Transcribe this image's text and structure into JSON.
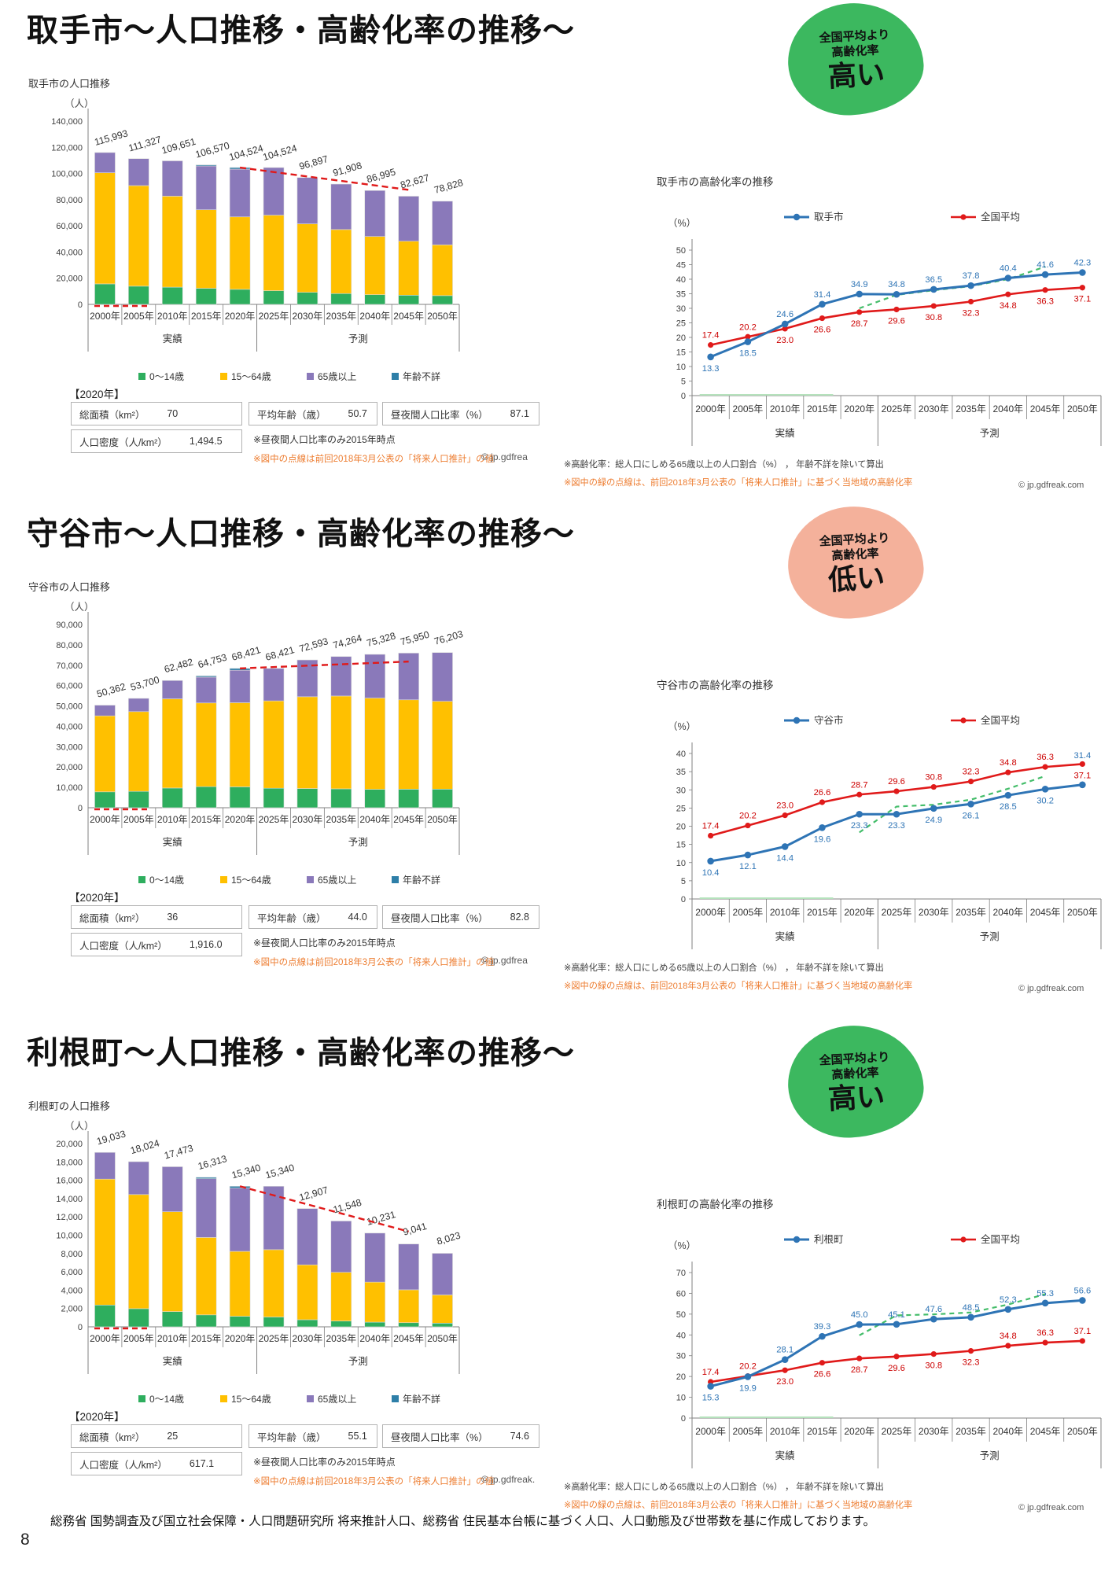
{
  "page": {
    "number": "8",
    "source_note": "総務省 国勢調査及び国立社会保障・人口問題研究所 将来推計人口、総務省 住民基本台帳に基づく人口、人口動態及び世帯数を基に作成しております。"
  },
  "colors": {
    "bar_kids": "#2eae5e",
    "bar_working": "#ffc000",
    "bar_elderly": "#8a79ba",
    "bar_unknown": "#2e7fa8",
    "line_municipal": "#2e74b5",
    "line_national": "#e01a1a",
    "label_national": "#cc0000",
    "prev_projection": "#44bd6a",
    "red_dash": "#e01a1a",
    "orange_note": "#ED7D31",
    "badge_high": "#3cb85f",
    "badge_low": "#f4b19b"
  },
  "categories": [
    "2000年",
    "2005年",
    "2010年",
    "2015年",
    "2020年",
    "2025年",
    "2030年",
    "2035年",
    "2040年",
    "2045年",
    "2050年"
  ],
  "axis_groups": {
    "actual": "実績",
    "forecast": "予測",
    "actual_span": 5
  },
  "bar_legend": [
    "0～14歳",
    "15～64歳",
    "65歳以上",
    "年齢不詳"
  ],
  "chart_data": [
    {
      "type": "bar",
      "title": "取手市の人口推移",
      "unit": "（人）",
      "ylim": [
        0,
        140000
      ],
      "ystep": 20000,
      "totals": [
        115993,
        111327,
        109651,
        106570,
        104524,
        104524,
        96897,
        91908,
        86995,
        82627,
        78828
      ],
      "total_labels": [
        "115,993",
        "111,327",
        "109,651",
        "106,570",
        "104,524",
        "104,524",
        "96,897",
        "91,908",
        "86,995",
        "82,627",
        "78,828"
      ],
      "age_groups": {
        "kids": [
          15659,
          13916,
          13158,
          12256,
          11498,
          10452,
          9205,
          8272,
          7394,
          7023,
          6700
        ],
        "working": [
          84907,
          76815,
          69519,
          60051,
          55347,
          57698,
          52325,
          48895,
          44455,
          41231,
          38784
        ],
        "elderly": [
          15427,
          20596,
          26974,
          33463,
          36479,
          36374,
          35367,
          34741,
          35146,
          34373,
          33344
        ],
        "unknown": [
          0,
          0,
          0,
          800,
          1200,
          0,
          0,
          0,
          0,
          0,
          0
        ]
      },
      "prev_projection_line": {
        "points": [
          [
            4,
            104524
          ],
          [
            9,
            87500
          ]
        ],
        "baseline_dash": true
      }
    },
    {
      "type": "line",
      "title": "取手市の高齢化率の推移",
      "unit": "（%）",
      "ylim": [
        0,
        50
      ],
      "ystep": 5,
      "series": [
        {
          "name": "取手市",
          "values": [
            13.3,
            18.5,
            24.6,
            31.4,
            34.9,
            34.8,
            36.5,
            37.8,
            40.4,
            41.6,
            42.3
          ],
          "labels": [
            "13.3",
            "18.5",
            "24.6",
            "31.4",
            "34.9",
            "34.8",
            "36.5",
            "37.8",
            "40.4",
            "41.6",
            "42.3"
          ],
          "label_sides": [
            "b",
            "b",
            "a",
            "a",
            "a",
            "a",
            "a",
            "a",
            "a",
            "a",
            "a"
          ]
        },
        {
          "name": "全国平均",
          "values": [
            17.4,
            20.2,
            23.0,
            26.6,
            28.7,
            29.6,
            30.8,
            32.3,
            34.8,
            36.3,
            37.1
          ],
          "labels": [
            "17.4",
            "20.2",
            "23.0",
            "26.6",
            "28.7",
            "29.6",
            "30.8",
            "32.3",
            "34.8",
            "36.3",
            "37.1"
          ],
          "label_sides": [
            "a",
            "a",
            "b",
            "b",
            "b",
            "b",
            "b",
            "b",
            "b",
            "b",
            "b"
          ]
        }
      ],
      "prev_projection": {
        "start_index": 4,
        "values": [
          30.0,
          34.6,
          36.2,
          37.6,
          40.0,
          44.3
        ]
      },
      "notes": [
        "※高齢化率：総人口にしめる65歳以上の人口割合（%） ， 年齢不詳を除いて算出",
        "※図中の緑の点線は、前回2018年3月公表の「将来人口推計」に基づく当地域の高齢化率"
      ],
      "copyright": "© jp.gdfreak.com"
    },
    {
      "type": "bar",
      "title": "守谷市の人口推移",
      "unit": "（人）",
      "ylim": [
        0,
        90000
      ],
      "ystep": 10000,
      "totals": [
        50362,
        53700,
        62482,
        64753,
        68421,
        68421,
        72593,
        74264,
        75328,
        75950,
        76203
      ],
      "total_labels": [
        "50,362",
        "53,700",
        "62,482",
        "64,753",
        "68,421",
        "68,421",
        "72,593",
        "74,264",
        "75,328",
        "75,950",
        "76,203"
      ],
      "age_groups": {
        "kids": [
          7806,
          8055,
          9685,
          10360,
          10263,
          9579,
          9437,
          9283,
          9039,
          9114,
          9144
        ],
        "working": [
          37318,
          39147,
          43800,
          41101,
          41316,
          42900,
          45080,
          45598,
          44821,
          43899,
          43131
        ],
        "elderly": [
          5238,
          6498,
          8997,
          12692,
          15942,
          15942,
          18076,
          19383,
          21468,
          22937,
          23928
        ],
        "unknown": [
          0,
          0,
          0,
          600,
          900,
          0,
          0,
          0,
          0,
          0,
          0
        ]
      },
      "prev_projection_line": {
        "points": [
          [
            4,
            68421
          ],
          [
            9,
            71800
          ]
        ],
        "baseline_dash": true
      }
    },
    {
      "type": "line",
      "title": "守谷市の高齢化率の推移",
      "unit": "（%）",
      "ylim": [
        0,
        40
      ],
      "ystep": 5,
      "series": [
        {
          "name": "守谷市",
          "values": [
            10.4,
            12.1,
            14.4,
            19.6,
            23.3,
            23.3,
            24.9,
            26.1,
            28.5,
            30.2,
            31.4
          ],
          "labels": [
            "10.4",
            "12.1",
            "14.4",
            "19.6",
            "23.3",
            "23.3",
            "24.9",
            "26.1",
            "28.5",
            "30.2",
            "31.4"
          ],
          "label_sides": [
            "b",
            "b",
            "b",
            "b",
            "b",
            "b",
            "b",
            "b",
            "b",
            "b",
            "A"
          ]
        },
        {
          "name": "全国平均",
          "values": [
            17.4,
            20.2,
            23.0,
            26.6,
            28.7,
            29.6,
            30.8,
            32.3,
            34.8,
            36.3,
            37.1
          ],
          "labels": [
            "17.4",
            "20.2",
            "23.0",
            "26.6",
            "28.7",
            "29.6",
            "30.8",
            "32.3",
            "34.8",
            "36.3",
            "37.1"
          ],
          "label_sides": [
            "a",
            "a",
            "a",
            "a",
            "a",
            "a",
            "a",
            "a",
            "a",
            "a",
            "b"
          ]
        }
      ],
      "prev_projection": {
        "start_index": 4,
        "values": [
          18.3,
          25.4,
          25.9,
          27.3,
          30.3,
          33.8
        ]
      },
      "notes": [
        "※高齢化率：総人口にしめる65歳以上の人口割合（%） ， 年齢不詳を除いて算出",
        "※図中の緑の点線は、前回2018年3月公表の「将来人口推計」に基づく当地域の高齢化率"
      ],
      "copyright": "© jp.gdfreak.com"
    },
    {
      "type": "bar",
      "title": "利根町の人口推移",
      "unit": "（人）",
      "ylim": [
        0,
        20000
      ],
      "ystep": 2000,
      "totals": [
        19033,
        18024,
        17473,
        16313,
        15340,
        15340,
        12907,
        11548,
        10231,
        9041,
        8023
      ],
      "total_labels": [
        "19,033",
        "18,024",
        "17,473",
        "16,313",
        "15,340",
        "15,340",
        "12,907",
        "11,548",
        "10,231",
        "9,041",
        "8,023"
      ],
      "age_groups": {
        "kids": [
          2379,
          1983,
          1660,
          1305,
          1151,
          1074,
          774,
          635,
          512,
          452,
          401
        ],
        "working": [
          13742,
          12454,
          10903,
          8447,
          7086,
          7348,
          5989,
          5312,
          4368,
          3589,
          3081
        ],
        "elderly": [
          2912,
          3587,
          4910,
          6411,
          6903,
          6918,
          6144,
          5601,
          5351,
          5000,
          4541
        ],
        "unknown": [
          0,
          0,
          0,
          150,
          200,
          0,
          0,
          0,
          0,
          0,
          0
        ]
      },
      "prev_projection_line": {
        "points": [
          [
            4,
            15340
          ],
          [
            9,
            10400
          ]
        ],
        "baseline_dash": true
      }
    },
    {
      "type": "line",
      "title": "利根町の高齢化率の推移",
      "unit": "（%）",
      "ylim": [
        0,
        70
      ],
      "ystep": 10,
      "series": [
        {
          "name": "利根町",
          "values": [
            15.3,
            19.9,
            28.1,
            39.3,
            45.0,
            45.1,
            47.6,
            48.5,
            52.3,
            55.3,
            56.6
          ],
          "labels": [
            "15.3",
            "19.9",
            "28.1",
            "39.3",
            "45.0",
            "45.1",
            "47.6",
            "48.5",
            "52.3",
            "55.3",
            "56.6"
          ],
          "label_sides": [
            "b",
            "b",
            "a",
            "a",
            "a",
            "a",
            "a",
            "a",
            "a",
            "a",
            "a"
          ]
        },
        {
          "name": "全国平均",
          "values": [
            17.4,
            20.2,
            23.0,
            26.6,
            28.7,
            29.6,
            30.8,
            32.3,
            34.8,
            36.3,
            37.1
          ],
          "labels": [
            "17.4",
            "20.2",
            "23.0",
            "26.6",
            "28.7",
            "29.6",
            "30.8",
            "32.3",
            "34.8",
            "36.3",
            "37.1"
          ],
          "label_sides": [
            "a",
            "a",
            "b",
            "b",
            "b",
            "b",
            "b",
            "b",
            "a",
            "a",
            "a"
          ]
        }
      ],
      "prev_projection": {
        "start_index": 4,
        "values": [
          39.8,
          49.4,
          49.9,
          50.8,
          54.6,
          59.6
        ]
      },
      "notes": [
        "※高齢化率：総人口にしめる65歳以上の人口割合（%） ， 年齢不詳を除いて算出",
        "※図中の緑の点線は、前回2018年3月公表の「将来人口推計」に基づく当地域の高齢化率"
      ],
      "copyright": "© jp.gdfreak.com"
    }
  ],
  "sections": [
    {
      "title": "取手市～人口推移・高齢化率の推移～",
      "badge": {
        "line1": "全国平均より",
        "line2": "高齢化率",
        "line3": "高い",
        "color": "#3cb85f"
      },
      "bar_chart": 0,
      "line_chart": 1,
      "table": {
        "heading": "【2020年】",
        "area_label": "総面積（km²）",
        "area": "70",
        "age_label": "平均年齢（歳）",
        "age": "50.7",
        "daynight_label": "昼夜間人口比率（%）",
        "daynight": "87.1",
        "density_label": "人口密度（人/km²）",
        "density": "1,494.5",
        "note1": "※昼夜間人口比率のみ2015年時点",
        "note2": "※図中の点線は前回2018年3月公表の「将来人口推計」の値",
        "copyright": "© jp.gdfrea"
      }
    },
    {
      "title": "守谷市～人口推移・高齢化率の推移～",
      "badge": {
        "line1": "全国平均より",
        "line2": "高齢化率",
        "line3": "低い",
        "color": "#f4b19b"
      },
      "bar_chart": 2,
      "line_chart": 3,
      "table": {
        "heading": "【2020年】",
        "area_label": "総面積（km²）",
        "area": "36",
        "age_label": "平均年齢（歳）",
        "age": "44.0",
        "daynight_label": "昼夜間人口比率（%）",
        "daynight": "82.8",
        "density_label": "人口密度（人/km²）",
        "density": "1,916.0",
        "note1": "※昼夜間人口比率のみ2015年時点",
        "note2": "※図中の点線は前回2018年3月公表の「将来人口推計」の値",
        "copyright": "© jp.gdfrea"
      }
    },
    {
      "title": "利根町～人口推移・高齢化率の推移～",
      "badge": {
        "line1": "全国平均より",
        "line2": "高齢化率",
        "line3": "高い",
        "color": "#3cb85f"
      },
      "bar_chart": 4,
      "line_chart": 5,
      "table": {
        "heading": "【2020年】",
        "area_label": "総面積（km²）",
        "area": "25",
        "age_label": "平均年齢（歳）",
        "age": "55.1",
        "daynight_label": "昼夜間人口比率（%）",
        "daynight": "74.6",
        "density_label": "人口密度（人/km²）",
        "density": "617.1",
        "note1": "※昼夜間人口比率のみ2015年時点",
        "note2": "※図中の点線は前回2018年3月公表の「将来人口推計」の値",
        "copyright": "© jp.gdfreak."
      }
    }
  ]
}
